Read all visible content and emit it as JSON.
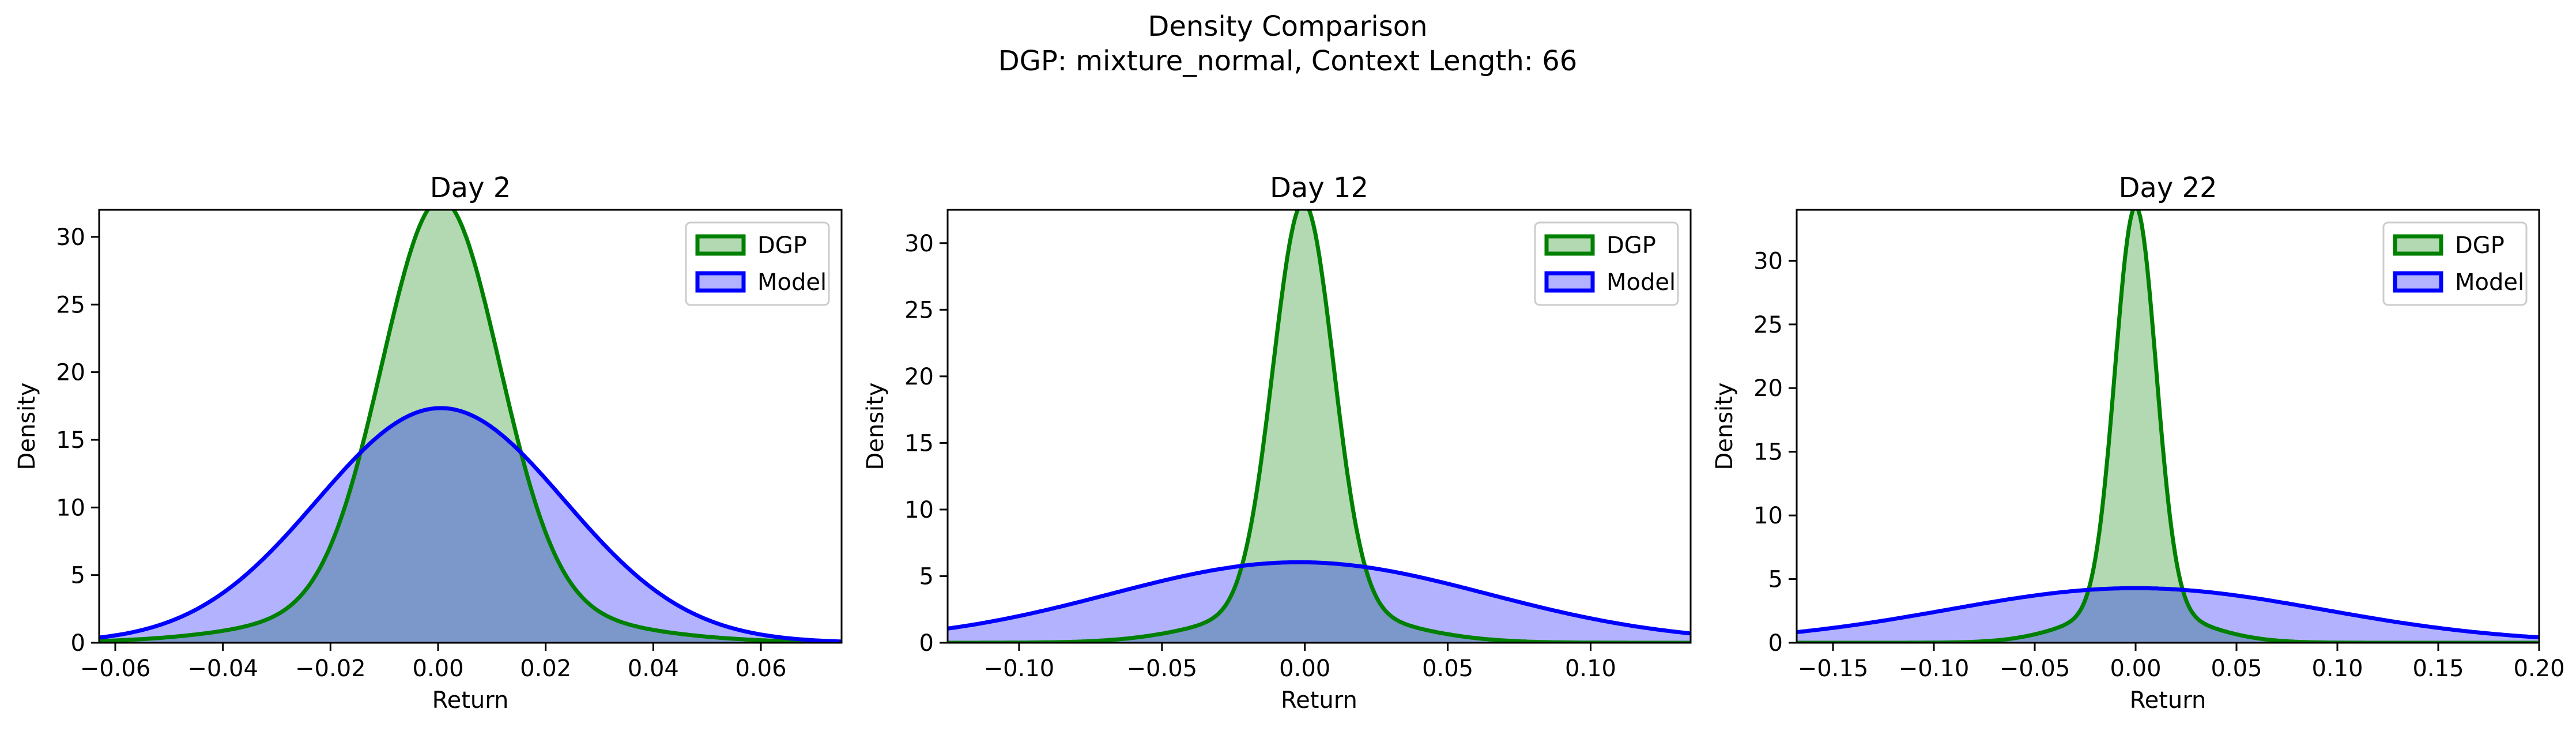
{
  "figure": {
    "title_line1": "Density Comparison",
    "title_line2": "DGP: mixture_normal, Context Length: 66"
  },
  "colors": {
    "dgp_line": "#008000",
    "dgp_fill": "#b2d9b2",
    "model_line": "#0000ff",
    "model_fill": "#b2b2ff",
    "overlap_fill": "#7f9bc8"
  },
  "chart_data": [
    {
      "type": "area",
      "title": "Day 2",
      "xlabel": "Return",
      "ylabel": "Density",
      "xlim": [
        -0.063,
        0.075
      ],
      "ylim": [
        0,
        32
      ],
      "xticks": [
        -0.06,
        -0.04,
        -0.02,
        0.0,
        0.02,
        0.04,
        0.06
      ],
      "xtick_labels": [
        "−0.06",
        "−0.04",
        "−0.02",
        "0.00",
        "0.02",
        "0.04",
        "0.06"
      ],
      "yticks": [
        0,
        5,
        10,
        15,
        20,
        25,
        30
      ],
      "ytick_labels": [
        "0",
        "5",
        "10",
        "15",
        "20",
        "25",
        "30"
      ],
      "legend": "top-right",
      "grid": false,
      "series": [
        {
          "name": "DGP",
          "kind": "mixture",
          "components": [
            {
              "weight": 0.8,
              "mean": 0.0005,
              "sd": 0.0108
            },
            {
              "weight": 0.2,
              "mean": 0.0005,
              "sd": 0.025
            }
          ]
        },
        {
          "name": "Model",
          "kind": "normal",
          "mean": 0.0005,
          "sd": 0.023
        }
      ]
    },
    {
      "type": "area",
      "title": "Day 12",
      "xlabel": "Return",
      "ylabel": "Density",
      "xlim": [
        -0.125,
        0.135
      ],
      "ylim": [
        0,
        32.5
      ],
      "xticks": [
        -0.1,
        -0.05,
        0.0,
        0.05,
        0.1
      ],
      "xtick_labels": [
        "−0.10",
        "−0.05",
        "0.00",
        "0.05",
        "0.10"
      ],
      "yticks": [
        0,
        5,
        10,
        15,
        20,
        25,
        30
      ],
      "ytick_labels": [
        "0",
        "5",
        "10",
        "15",
        "20",
        "25",
        "30"
      ],
      "legend": "top-right",
      "grid": false,
      "series": [
        {
          "name": "DGP",
          "kind": "mixture",
          "components": [
            {
              "weight": 0.8,
              "mean": -0.0005,
              "sd": 0.0105
            },
            {
              "weight": 0.2,
              "mean": -0.0005,
              "sd": 0.03
            }
          ]
        },
        {
          "name": "Model",
          "kind": "normal",
          "mean": -0.002,
          "sd": 0.066
        }
      ]
    },
    {
      "type": "area",
      "title": "Day 22",
      "xlabel": "Return",
      "ylabel": "Density",
      "xlim": [
        -0.168,
        0.2
      ],
      "ylim": [
        0,
        34
      ],
      "xticks": [
        -0.15,
        -0.1,
        -0.05,
        0.0,
        0.05,
        0.1,
        0.15,
        0.2
      ],
      "xtick_labels": [
        "−0.15",
        "−0.10",
        "−0.05",
        "0.00",
        "0.05",
        "0.10",
        "0.15",
        "0.20"
      ],
      "yticks": [
        0,
        5,
        10,
        15,
        20,
        25,
        30
      ],
      "ytick_labels": [
        "0",
        "5",
        "10",
        "15",
        "20",
        "25",
        "30"
      ],
      "legend": "top-right",
      "grid": false,
      "series": [
        {
          "name": "DGP",
          "kind": "mixture",
          "components": [
            {
              "weight": 0.8,
              "mean": 0.0,
              "sd": 0.0101
            },
            {
              "weight": 0.2,
              "mean": 0.0,
              "sd": 0.03
            }
          ]
        },
        {
          "name": "Model",
          "kind": "normal",
          "mean": 0.0,
          "sd": 0.093
        }
      ]
    }
  ]
}
